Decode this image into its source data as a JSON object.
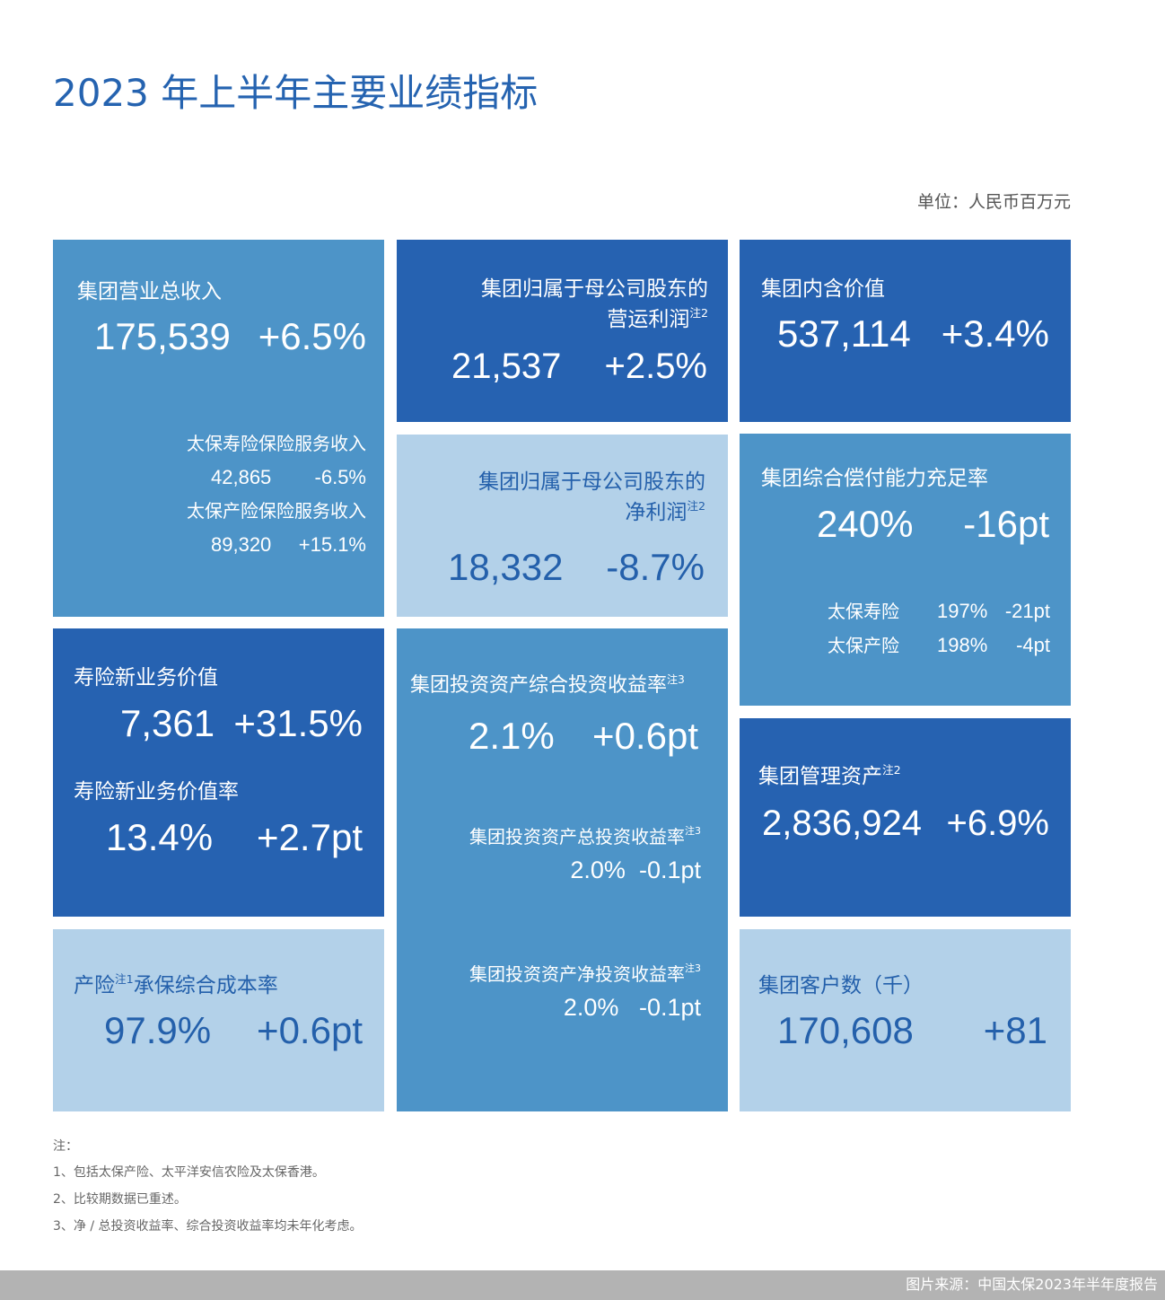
{
  "title": "2023 年上半年主要业绩指标",
  "unit": "单位：人民币百万元",
  "colors": {
    "title": "#2563b0",
    "tile_medium": "#4d94c8",
    "tile_dark": "#2662b1",
    "tile_light": "#b3d1e9",
    "footer": "#b3b3b3"
  },
  "revenue": {
    "label": "集团营业总收入",
    "value": "175,539",
    "change": "+6.5%",
    "life_label": "太保寿险保险服务收入",
    "life_value": "42,865",
    "life_change": "-6.5%",
    "pc_label": "太保产险保险服务收入",
    "pc_value": "89,320",
    "pc_change": "+15.1%"
  },
  "operating_profit": {
    "label1": "集团归属于母公司股东的",
    "label2": "营运利润",
    "note": "注2",
    "value": "21,537",
    "change": "+2.5%"
  },
  "embedded_value": {
    "label": "集团内含价值",
    "value": "537,114",
    "change": "+3.4%"
  },
  "net_profit": {
    "label1": "集团归属于母公司股东的",
    "label2": "净利润",
    "note": "注2",
    "value": "18,332",
    "change": "-8.7%"
  },
  "solvency": {
    "label": "集团综合偿付能力充足率",
    "value": "240%",
    "change": "-16pt",
    "rows": [
      {
        "label": "太保寿险",
        "value": "197%",
        "change": "-21pt"
      },
      {
        "label": "太保产险",
        "value": "198%",
        "change": "-4pt"
      }
    ]
  },
  "nbv": {
    "label": "寿险新业务价值",
    "value": "7,361",
    "change": "+31.5%",
    "margin_label": "寿险新业务价值率",
    "margin_value": "13.4%",
    "margin_change": "+2.7pt"
  },
  "investment": {
    "label": "集团投资资产综合投资收益率",
    "note": "注3",
    "value": "2.1%",
    "change": "+0.6pt",
    "total_label": "集团投资资产总投资收益率",
    "total_note": "注3",
    "total_value": "2.0%",
    "total_change": "-0.1pt",
    "net_label": "集团投资资产净投资收益率",
    "net_note": "注3",
    "net_value": "2.0%",
    "net_change": "-0.1pt"
  },
  "aum": {
    "label": "集团管理资产",
    "note": "注2",
    "value": "2,836,924",
    "change": "+6.9%"
  },
  "combined_ratio": {
    "label_a": "产险",
    "note": "注1",
    "label_b": "承保综合成本率",
    "value": "97.9%",
    "change": "+0.6pt"
  },
  "customers": {
    "label": "集团客户数（千）",
    "value": "170,608",
    "change": "+81"
  },
  "notes": [
    "注：",
    "1、包括太保产险、太平洋安信农险及太保香港。",
    "2、比较期数据已重述。",
    "3、净 / 总投资收益率、综合投资收益率均未年化考虑。"
  ],
  "footer": "图片来源：中国太保2023年半年度报告"
}
